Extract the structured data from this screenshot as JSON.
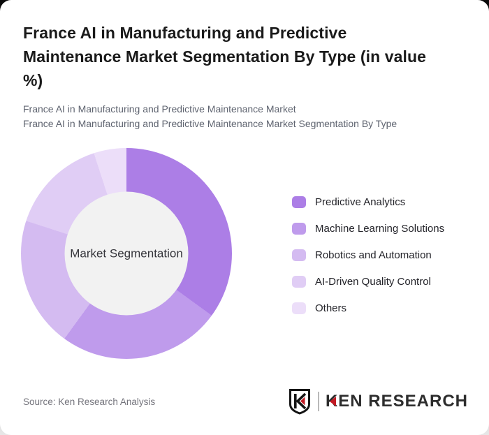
{
  "header": {
    "title": "France AI in Manufacturing and Predictive Maintenance Market Segmentation By Type (in value %)",
    "subtitle_line1": "France AI in Manufacturing and Predictive Maintenance Market",
    "subtitle_line2": "France AI in Manufacturing and Predictive Maintenance Market Segmentation By Type"
  },
  "chart_data": {
    "type": "pie",
    "subtype": "donut",
    "title": "France AI in Manufacturing and Predictive Maintenance Market Segmentation By Type (in value %)",
    "center_label": "Market Segmentation",
    "categories": [
      "Predictive Analytics",
      "Machine Learning Solutions",
      "Robotics and Automation",
      "AI-Driven Quality Control",
      "Others"
    ],
    "values": [
      35,
      25,
      20,
      15,
      5
    ],
    "unit": "value %",
    "colors": [
      "#AC7EE6",
      "#BF9BEC",
      "#D4BBF1",
      "#E0CDF5",
      "#ECDEF9"
    ],
    "start_angle_deg": 0,
    "direction": "clockwise",
    "inner_radius_ratio": 0.585,
    "inner_circle_color": "#f2f2f2",
    "legend_position": "right",
    "data_labels_shown": false
  },
  "footer": {
    "source_text": "Source: Ken Research Analysis",
    "logo_text": "KEN RESEARCH",
    "logo_accent_color": "#c21b24"
  }
}
